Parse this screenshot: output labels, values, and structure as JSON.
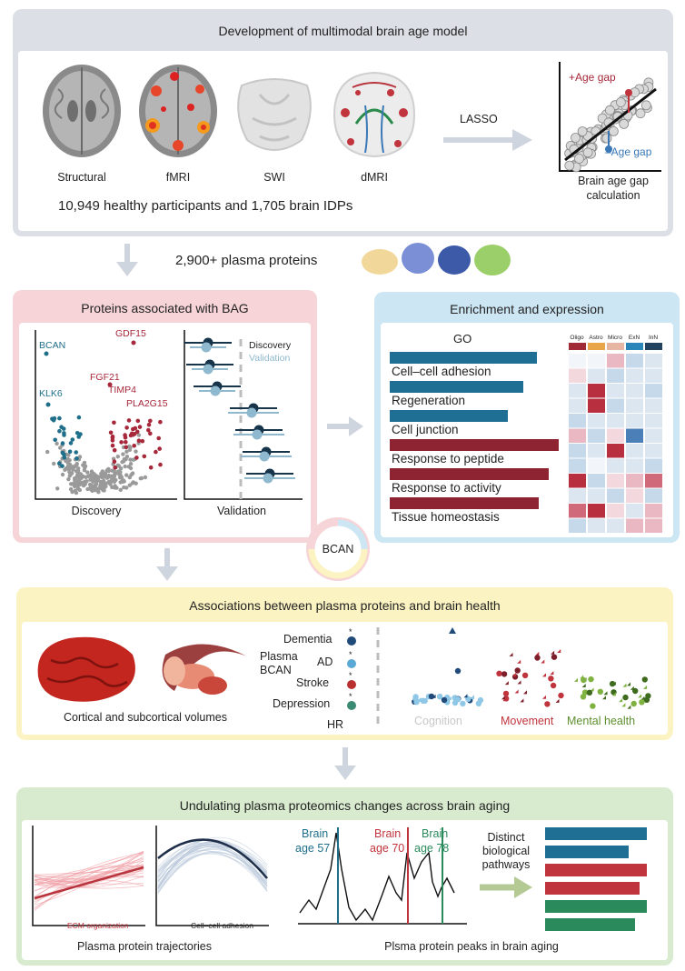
{
  "panel1": {
    "title": "Development of multimodal brain age model",
    "modalities": [
      "Structural",
      "fMRI",
      "SWI",
      "dMRI"
    ],
    "participants": "10,949 healthy participants and 1,705 brain IDPs",
    "method": "LASSO",
    "plot": {
      "pos_gap": "+Age gap",
      "neg_gap": "–Age gap",
      "caption_line1": "Brain age gap",
      "caption_line2": "calculation"
    }
  },
  "proteins_label": "2,900+ plasma proteins",
  "panel2": {
    "title": "Proteins associated with BAG",
    "volcano": {
      "labels": [
        {
          "text": "GDF15",
          "color": "red"
        },
        {
          "text": "BCAN",
          "color": "blue"
        },
        {
          "text": "FGF21",
          "color": "red"
        },
        {
          "text": "TIMP4",
          "color": "red"
        },
        {
          "text": "KLK6",
          "color": "blue"
        },
        {
          "text": "PLA2G15",
          "color": "red"
        }
      ],
      "caption": "Discovery"
    },
    "forest": {
      "legend_discovery": "Discovery",
      "legend_validation": "Validation",
      "caption": "Validation"
    }
  },
  "panel3": {
    "title": "Enrichment and expression",
    "go_label": "GO",
    "terms": [
      {
        "label": "Cell–cell adhesion",
        "color": "#1f6e94",
        "value": 0.87
      },
      {
        "label": "Regeneration",
        "color": "#1f6e94",
        "value": 0.79
      },
      {
        "label": "Cell junction",
        "color": "#1f6e94",
        "value": 0.7
      },
      {
        "label": "Response to peptide",
        "color": "#8e2431",
        "value": 1.0
      },
      {
        "label": "Response to activity",
        "color": "#8e2431",
        "value": 0.94
      },
      {
        "label": "Tissue homeostasis",
        "color": "#8e2431",
        "value": 0.88
      }
    ],
    "cell_types": [
      {
        "label": "Oligo",
        "color": "#a02a35"
      },
      {
        "label": "Astro",
        "color": "#e8a54a"
      },
      {
        "label": "Micro",
        "color": "#e6b6a3"
      },
      {
        "label": "ExN",
        "color": "#2a86b8"
      },
      {
        "label": "InN",
        "color": "#21425e"
      }
    ]
  },
  "bcan_circle": "BCAN",
  "panel4": {
    "title": "Associations between plasma proteins and brain health",
    "brain_caption": "Cortical and subcortical volumes",
    "plasma_label_line1": "Plasma",
    "plasma_label_line2": "BCAN",
    "outcomes": [
      "Dementia",
      "AD",
      "Stroke",
      "Depression",
      "HR"
    ],
    "scatter_labels": {
      "cognition": "Cognition",
      "movement": "Movement",
      "mental": "Mental health"
    }
  },
  "panel5": {
    "title": "Undulating plasma proteomics changes across brain aging",
    "traj_left_label": "ECM organization",
    "traj_right_label": "Cell–cell adhesion",
    "traj_caption": "Plasma protein trajectories",
    "peaks": [
      {
        "line1": "Brain",
        "line2": "age 57",
        "color": "blue"
      },
      {
        "line1": "Brain",
        "line2": "age 70",
        "color": "red"
      },
      {
        "line1": "Brain",
        "line2": "age 78",
        "color": "green"
      }
    ],
    "pathways_line1": "Distinct",
    "pathways_line2": "biological",
    "pathways_line3": "pathways",
    "peaks_caption": "Plsma protein peaks in brain aging",
    "bars": [
      {
        "color": "#1f6e94",
        "value": 0.95
      },
      {
        "color": "#1f6e94",
        "value": 0.78
      },
      {
        "color": "#c0343d",
        "value": 0.95
      },
      {
        "color": "#c0343d",
        "value": 0.88
      },
      {
        "color": "#2a8a5c",
        "value": 0.95
      },
      {
        "color": "#2a8a5c",
        "value": 0.84
      }
    ]
  }
}
